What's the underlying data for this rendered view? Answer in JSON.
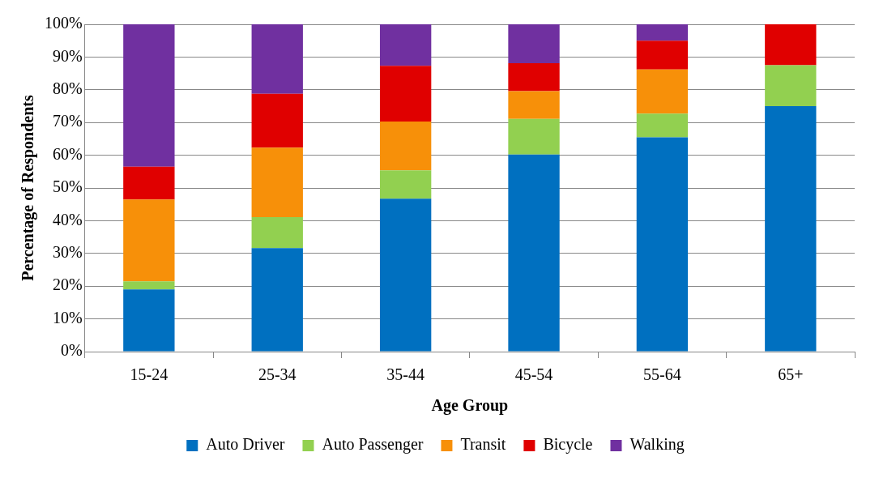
{
  "chart_data": {
    "type": "bar",
    "stacked": true,
    "xlabel": "Age Group",
    "ylabel": "Percentage of Respondents",
    "categories": [
      "15-24",
      "25-34",
      "35-44",
      "45-54",
      "55-64",
      "65+"
    ],
    "series": [
      {
        "name": "Auto Driver",
        "color": "#0070c0",
        "values": [
          19,
          31.6,
          46.7,
          60.2,
          65.5,
          75
        ]
      },
      {
        "name": "Auto Passenger",
        "color": "#92d050",
        "values": [
          2.5,
          9.5,
          8.7,
          10.9,
          7.2,
          12.5
        ]
      },
      {
        "name": "Transit",
        "color": "#f79009",
        "values": [
          25,
          21.2,
          14.9,
          8.5,
          13.5,
          0
        ]
      },
      {
        "name": "Bicycle",
        "color": "#e00000",
        "values": [
          10,
          16.5,
          17,
          8.5,
          8.8,
          12.5
        ]
      },
      {
        "name": "Walking",
        "color": "#7030a0",
        "values": [
          43.5,
          21.2,
          12.7,
          11.9,
          5,
          0
        ]
      }
    ],
    "ylim": [
      0,
      100
    ],
    "yticks": [
      {
        "value": 0,
        "label": "0%"
      },
      {
        "value": 10,
        "label": "10%"
      },
      {
        "value": 20,
        "label": "20%"
      },
      {
        "value": 30,
        "label": "30%"
      },
      {
        "value": 40,
        "label": "40%"
      },
      {
        "value": 50,
        "label": "50%"
      },
      {
        "value": 60,
        "label": "60%"
      },
      {
        "value": 70,
        "label": "70%"
      },
      {
        "value": 80,
        "label": "80%"
      },
      {
        "value": 90,
        "label": "90%"
      },
      {
        "value": 100,
        "label": "100%"
      }
    ],
    "grid": "y",
    "legend": "bottom"
  }
}
